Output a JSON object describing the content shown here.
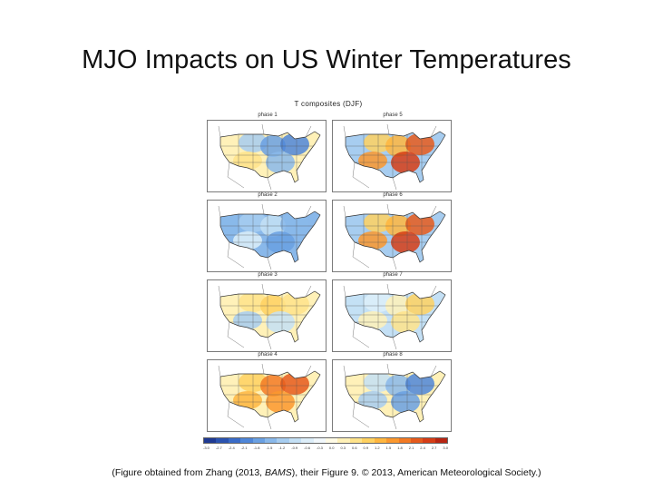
{
  "slide": {
    "title": "MJO Impacts on US Winter Temperatures",
    "caption_prefix": "(Figure obtained from Zhang (2013, ",
    "caption_italic": "BAMS",
    "caption_suffix": "), their Figure 9. © 2013, American Meteorological Society.)"
  },
  "figure": {
    "title": "T composites (DJF)",
    "panels": [
      {
        "label": "phase 1",
        "pattern": "cold-north-warm-southwest"
      },
      {
        "label": "phase 5",
        "pattern": "warm-east"
      },
      {
        "label": "phase 2",
        "pattern": "cold-widespread"
      },
      {
        "label": "phase 6",
        "pattern": "warm-east"
      },
      {
        "label": "phase 3",
        "pattern": "warm-north-cold-south"
      },
      {
        "label": "phase 7",
        "pattern": "weak-warm-east"
      },
      {
        "label": "phase 4",
        "pattern": "warm-center-east"
      },
      {
        "label": "phase 8",
        "pattern": "cold-east"
      }
    ],
    "colorbar": {
      "ticks": [
        "-3.0",
        "-2.7",
        "-2.4",
        "-2.1",
        "-1.8",
        "-1.5",
        "-1.2",
        "-0.9",
        "-0.6",
        "-0.3",
        "0.0",
        "0.3",
        "0.6",
        "0.9",
        "1.2",
        "1.5",
        "1.8",
        "2.1",
        "2.4",
        "2.7",
        "3.0"
      ],
      "colors": [
        "#1f3a93",
        "#2b53b0",
        "#3a6cc8",
        "#4f86d8",
        "#6aa0e2",
        "#89b8ea",
        "#a7cdf0",
        "#c4e0f5",
        "#ddeef9",
        "#f2f8fc",
        "#fffbe6",
        "#fff1b8",
        "#ffe38a",
        "#ffd160",
        "#ffb63f",
        "#fb982e",
        "#f37a24",
        "#e65a1c",
        "#d63d16",
        "#b82512"
      ]
    }
  }
}
